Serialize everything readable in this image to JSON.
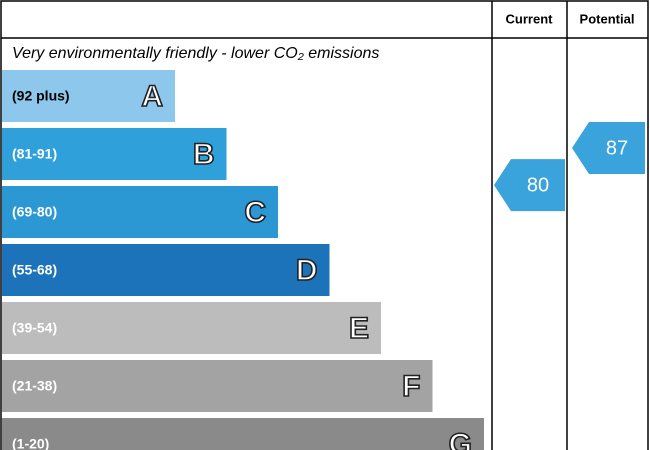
{
  "chart_data": {
    "type": "rating",
    "columns": [
      "Current",
      "Potential"
    ],
    "subtitle": "Very environmentally friendly - lower CO₂ emissions",
    "bands": [
      {
        "range": "(92 plus)",
        "letter": "A",
        "color": "#8dc8ec",
        "text_color": "#000000"
      },
      {
        "range": "(81-91)",
        "letter": "B",
        "color": "#2fa0da",
        "text_color": "#ffffff"
      },
      {
        "range": "(69-80)",
        "letter": "C",
        "color": "#2b98d4",
        "text_color": "#ffffff"
      },
      {
        "range": "(55-68)",
        "letter": "D",
        "color": "#1d73b9",
        "text_color": "#ffffff"
      },
      {
        "range": "(39-54)",
        "letter": "E",
        "color": "#bcbcbc",
        "text_color": "#ffffff"
      },
      {
        "range": "(21-38)",
        "letter": "F",
        "color": "#a3a3a3",
        "text_color": "#ffffff"
      },
      {
        "range": "(1-20)",
        "letter": "G",
        "color": "#8a8a8a",
        "text_color": "#ffffff"
      }
    ],
    "current": 80,
    "potential": 87,
    "arrow_color": "#3aa3dc"
  }
}
